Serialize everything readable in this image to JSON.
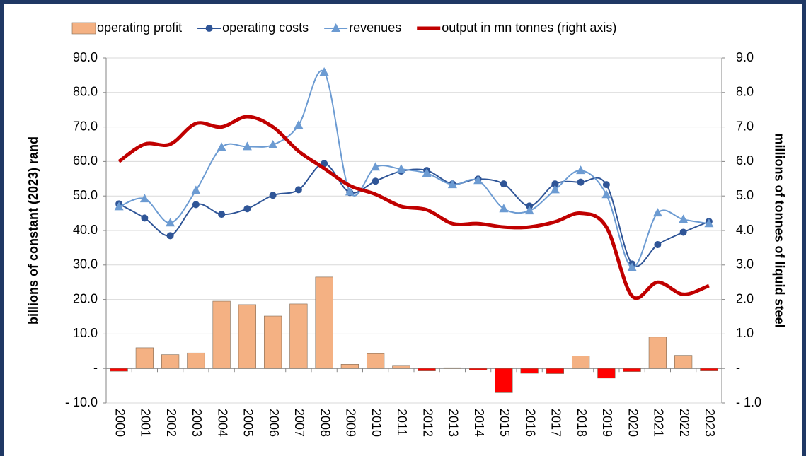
{
  "chart_data": {
    "type": "combo",
    "categories": [
      "2000",
      "2001",
      "2002",
      "2003",
      "2004",
      "2005",
      "2006",
      "2007",
      "2008",
      "2009",
      "2010",
      "2011",
      "2012",
      "2013",
      "2014",
      "2015",
      "2016",
      "2017",
      "2018",
      "2019",
      "2020",
      "2021",
      "2022",
      "2023"
    ],
    "y_label": "billions of constant (2023) rand",
    "y2_label": "millions of tonnes of liquid steel",
    "ylim": [
      -10,
      90
    ],
    "yticks": [
      {
        "value": -10,
        "label": "- 10.0"
      },
      {
        "value": 0,
        "label": "-"
      },
      {
        "value": 10,
        "label": "10.0"
      },
      {
        "value": 20,
        "label": "20.0"
      },
      {
        "value": 30,
        "label": "30.0"
      },
      {
        "value": 40,
        "label": "40.0"
      },
      {
        "value": 50,
        "label": "50.0"
      },
      {
        "value": 60,
        "label": "60.0"
      },
      {
        "value": 70,
        "label": "70.0"
      },
      {
        "value": 80,
        "label": "80.0"
      },
      {
        "value": 90,
        "label": "90.0"
      }
    ],
    "y2lim": [
      -1,
      9
    ],
    "y2ticks": [
      {
        "value": -1,
        "label": "- 1.0"
      },
      {
        "value": 0,
        "label": "-"
      },
      {
        "value": 1,
        "label": "1.0"
      },
      {
        "value": 2,
        "label": "2.0"
      },
      {
        "value": 3,
        "label": "3.0"
      },
      {
        "value": 4,
        "label": "4.0"
      },
      {
        "value": 5,
        "label": "5.0"
      },
      {
        "value": 6,
        "label": "6.0"
      },
      {
        "value": 7,
        "label": "7.0"
      },
      {
        "value": 8,
        "label": "8.0"
      },
      {
        "value": 9,
        "label": "9.0"
      }
    ],
    "grid": true,
    "legend": "top",
    "series": [
      {
        "name": "operating profit",
        "type": "bar",
        "color": "#F4B183",
        "negative_color": "#FF0000",
        "values": [
          -0.8,
          6.0,
          4.0,
          4.5,
          19.5,
          18.5,
          15.2,
          18.7,
          26.5,
          1.2,
          4.3,
          0.9,
          -0.7,
          0.2,
          -0.4,
          -7.0,
          -1.4,
          -1.5,
          3.6,
          -2.8,
          -0.9,
          9.1,
          3.8,
          -0.7
        ]
      },
      {
        "name": "operating costs",
        "type": "line",
        "marker": "circle",
        "color": "#2F5597",
        "values": [
          47.7,
          43.6,
          38.5,
          47.5,
          44.7,
          46.3,
          50.2,
          51.8,
          59.4,
          51.0,
          54.3,
          57.2,
          57.4,
          53.5,
          54.9,
          53.5,
          47.1,
          53.5,
          54.0,
          53.3,
          30.3,
          35.9,
          39.5,
          42.6
        ]
      },
      {
        "name": "revenues",
        "type": "line",
        "marker": "triangle",
        "color": "#6C9BD2",
        "values": [
          46.9,
          49.2,
          42.2,
          51.6,
          64.1,
          64.3,
          64.8,
          70.5,
          85.9,
          51.2,
          58.4,
          57.8,
          56.6,
          53.3,
          54.5,
          46.3,
          45.7,
          51.8,
          57.4,
          50.4,
          29.3,
          45.1,
          43.2,
          42.0
        ]
      },
      {
        "name": "output in mn tonnes (right axis)",
        "type": "line",
        "marker": "none",
        "color": "#C00000",
        "axis": "y2",
        "values": [
          6.0,
          6.5,
          6.5,
          7.1,
          7.0,
          7.3,
          7.0,
          6.3,
          5.8,
          5.3,
          5.05,
          4.7,
          4.6,
          4.2,
          4.2,
          4.1,
          4.1,
          4.25,
          4.5,
          4.1,
          2.1,
          2.5,
          2.15,
          2.4
        ]
      }
    ]
  }
}
